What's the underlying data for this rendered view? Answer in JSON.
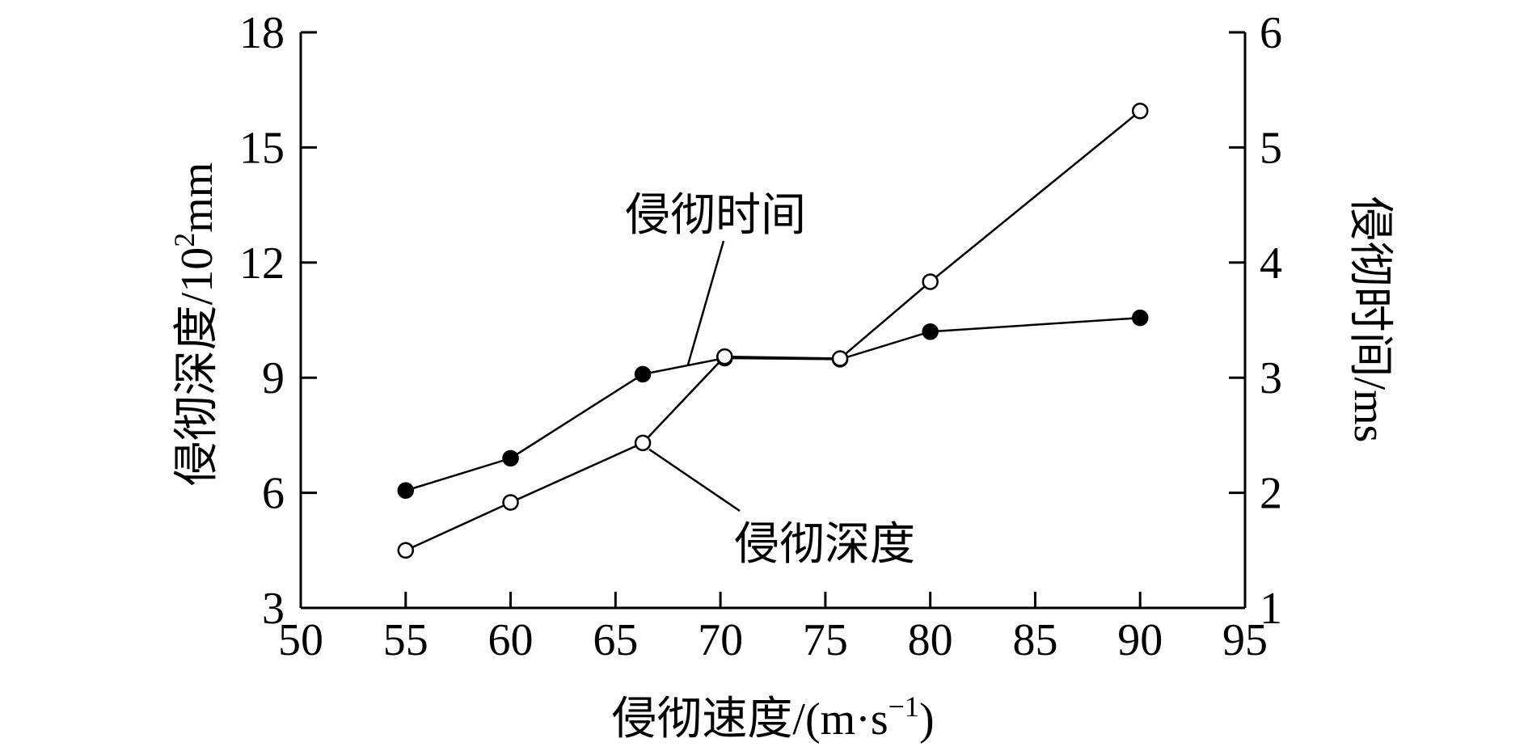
{
  "chart_data": {
    "type": "line",
    "x": [
      55,
      60,
      66.3,
      70.2,
      75.7,
      80,
      90
    ],
    "xlabel": "侵彻速度/(m·s⁻¹)",
    "xlabel_main": "侵彻速度/(m·s",
    "xlabel_sup": "−1",
    "xlabel_close": ")",
    "xlim": [
      50,
      95
    ],
    "xticks": [
      50,
      55,
      60,
      65,
      70,
      75,
      80,
      85,
      90,
      95
    ],
    "ylabel_left": "侵彻深度/10²mm",
    "ylabel_left_main": "侵彻深度/10",
    "ylabel_left_sup": "2",
    "ylabel_left_unit": "mm",
    "ylim_left": [
      3,
      18
    ],
    "yticks_left": [
      3,
      6,
      9,
      12,
      15,
      18
    ],
    "ylabel_right": "侵彻时间/ms",
    "ylim_right": [
      1,
      6
    ],
    "yticks_right": [
      1,
      2,
      3,
      4,
      5,
      6
    ],
    "grid": false,
    "series": [
      {
        "name": "侵彻时间",
        "axis": "right",
        "marker": "filled-circle",
        "x": [
          55,
          60,
          66.3,
          70.2,
          75.7,
          80,
          90
        ],
        "values": [
          2.02,
          2.3,
          3.03,
          3.17,
          3.16,
          3.4,
          3.52
        ]
      },
      {
        "name": "侵彻深度",
        "axis": "left",
        "marker": "open-circle",
        "x": [
          55,
          60,
          66.3,
          70.2,
          75.7,
          80,
          90
        ],
        "values": [
          4.5,
          5.75,
          7.3,
          9.55,
          9.5,
          11.5,
          15.95
        ]
      }
    ],
    "annotations": [
      {
        "text": "侵彻时间",
        "series": "侵彻时间"
      },
      {
        "text": "侵彻深度",
        "series": "侵彻深度"
      }
    ]
  }
}
